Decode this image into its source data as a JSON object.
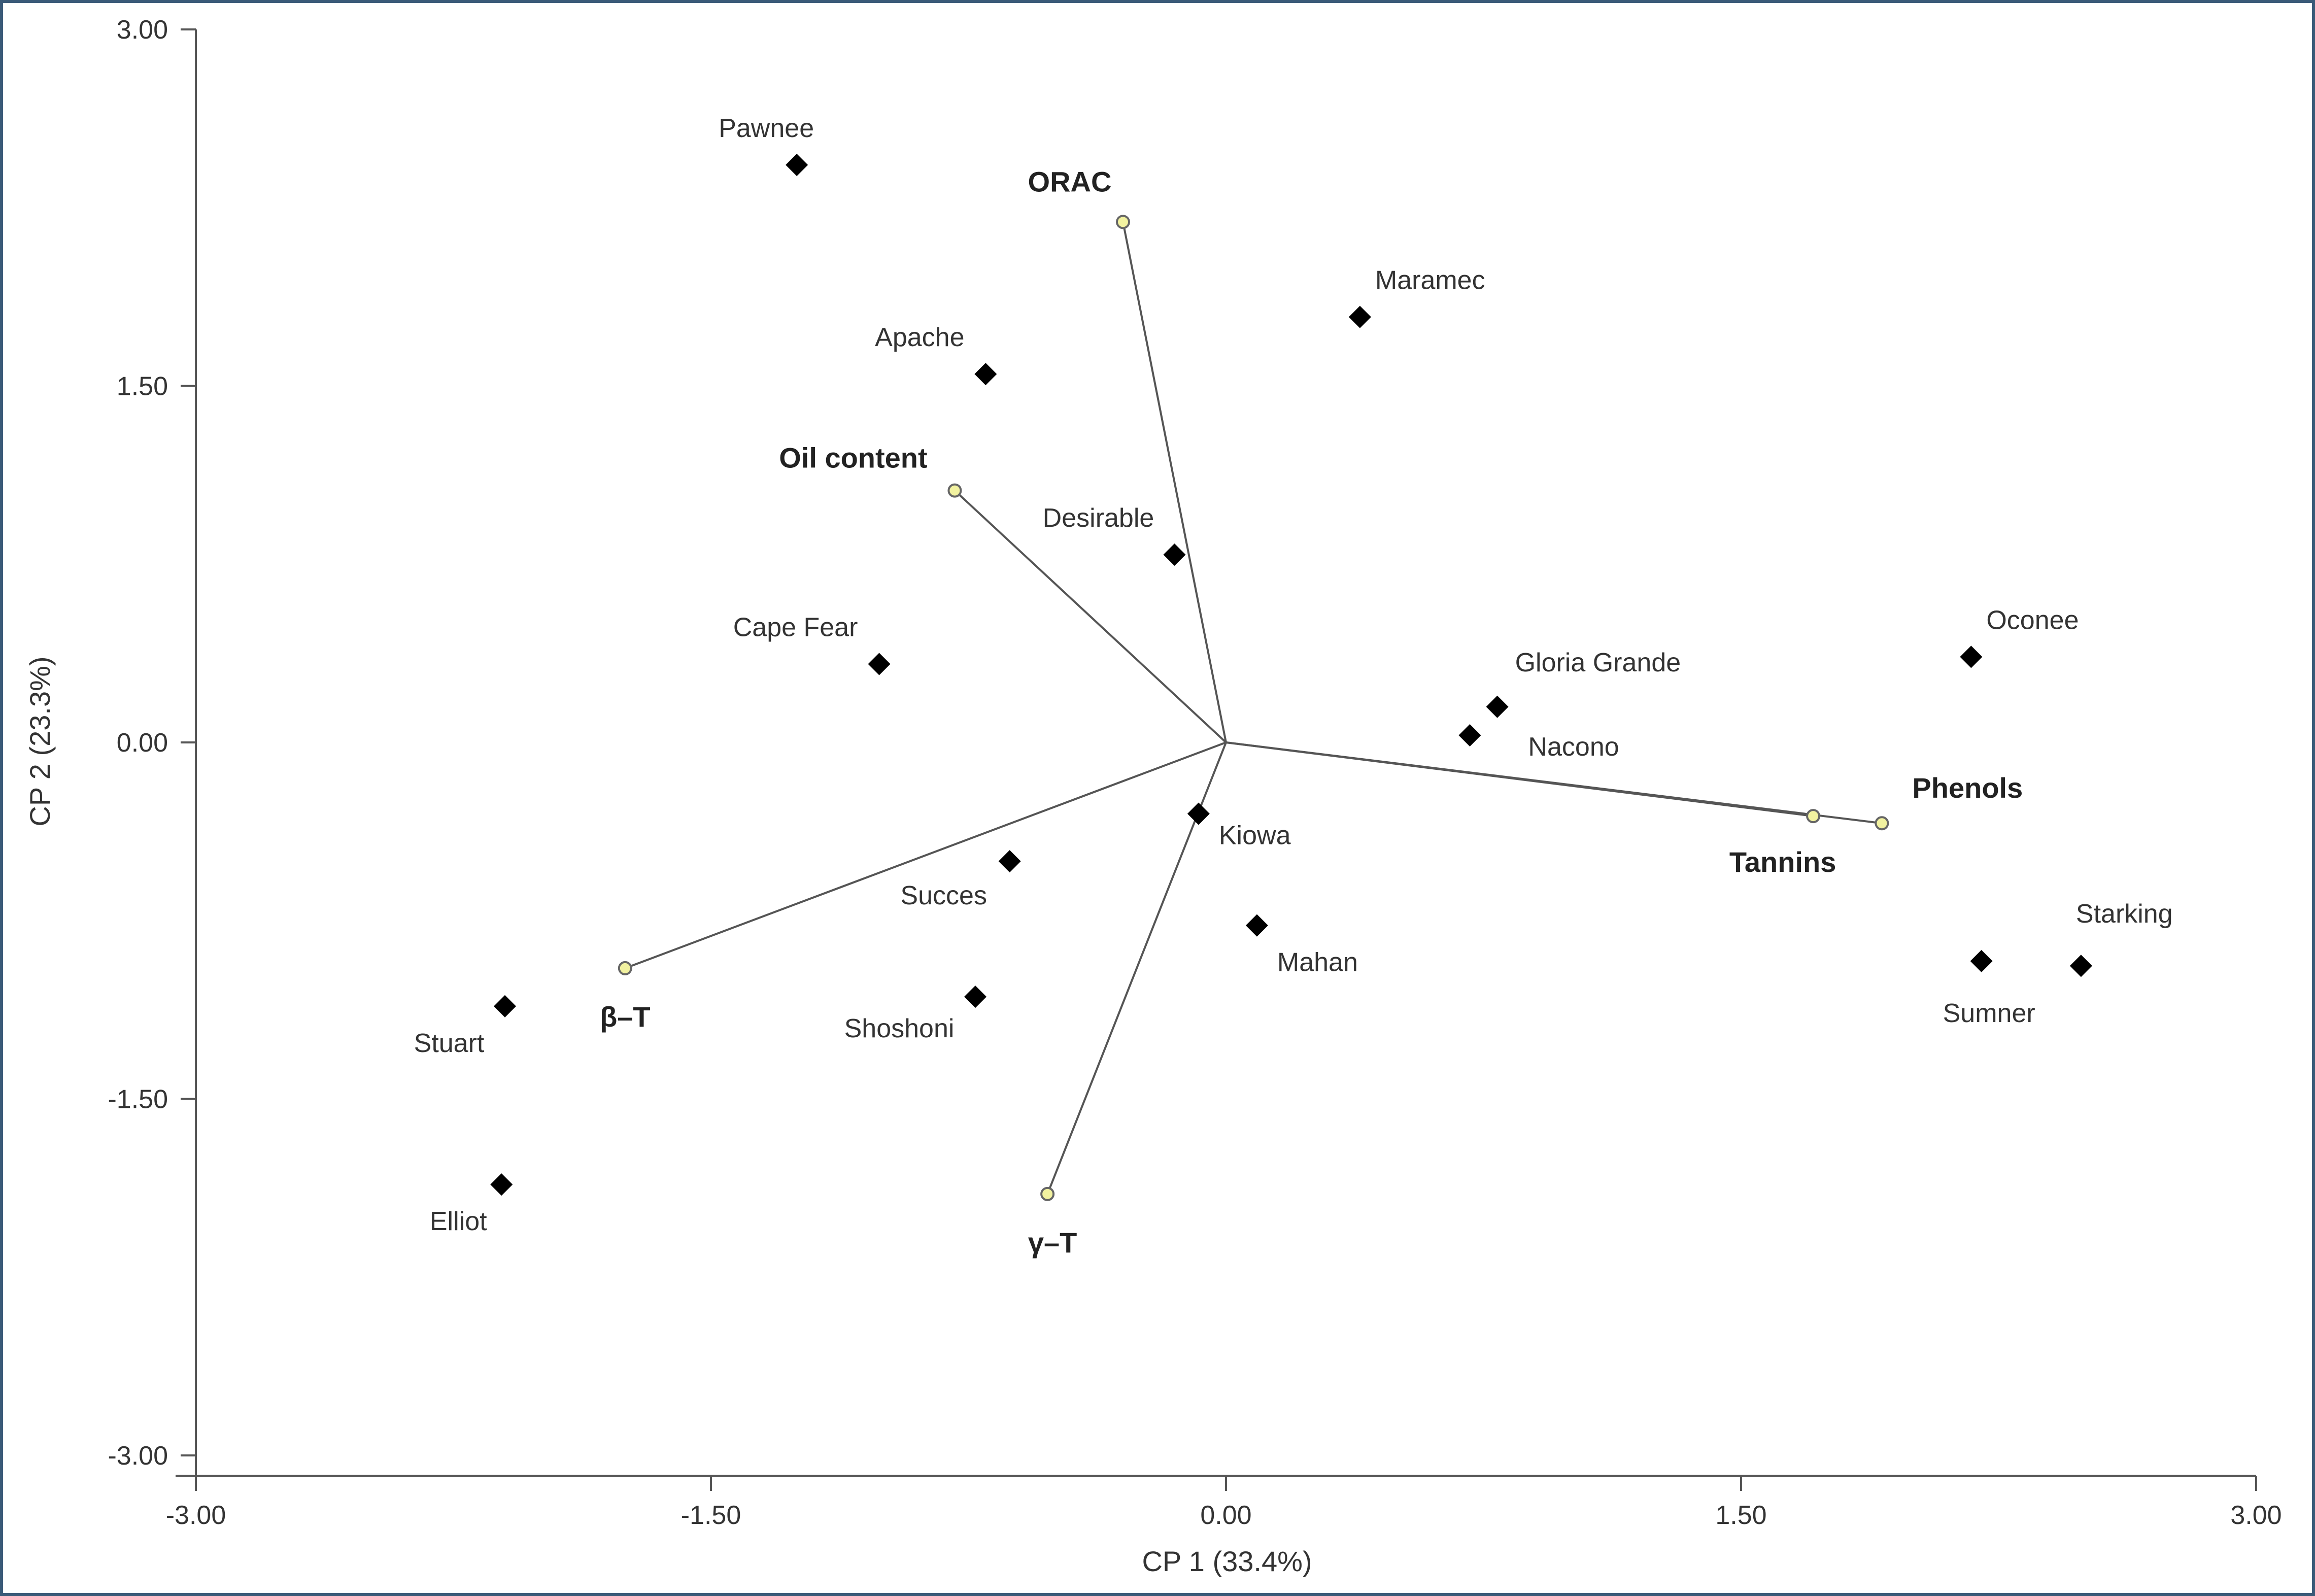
{
  "chart_data": {
    "type": "scatter",
    "title": "",
    "xlabel": "CP 1 (33.4%)",
    "ylabel": "CP 2 (23.3%)",
    "xlim": [
      -3.0,
      3.0
    ],
    "ylim": [
      -3.0,
      3.0
    ],
    "x_ticks": [
      "-3.00",
      "-1.50",
      "0.00",
      "1.50",
      "3.00"
    ],
    "y_ticks": [
      "3.00",
      "1.50",
      "0.00",
      "-1.50",
      "-3.00"
    ],
    "grid": false,
    "legend": "none",
    "colors": {
      "points": "#000000",
      "vector_lines": "#555555",
      "vector_ends": "#f2f2a0"
    },
    "series": [
      {
        "kind": "cultivars",
        "points": [
          {
            "label": "Pawnee",
            "x": -1.25,
            "y": 2.43
          },
          {
            "label": "Maramec",
            "x": 0.39,
            "y": 1.79
          },
          {
            "label": "Apache",
            "x": -0.7,
            "y": 1.55
          },
          {
            "label": "Desirable",
            "x": -0.15,
            "y": 0.79
          },
          {
            "label": "Cape Fear",
            "x": -1.01,
            "y": 0.33
          },
          {
            "label": "Oconee",
            "x": 2.17,
            "y": 0.36
          },
          {
            "label": "Gloria Grande",
            "x": 0.79,
            "y": 0.15
          },
          {
            "label": "Nacono",
            "x": 0.71,
            "y": 0.03
          },
          {
            "label": "Kiowa",
            "x": -0.08,
            "y": -0.3
          },
          {
            "label": "Succes",
            "x": -0.63,
            "y": -0.5
          },
          {
            "label": "Mahan",
            "x": 0.09,
            "y": -0.77
          },
          {
            "label": "Shoshoni",
            "x": -0.73,
            "y": -1.07
          },
          {
            "label": "Stuart",
            "x": -2.1,
            "y": -1.11
          },
          {
            "label": "Elliot",
            "x": -2.11,
            "y": -1.86
          },
          {
            "label": "Sumner",
            "x": 2.2,
            "y": -0.92
          },
          {
            "label": "Starking",
            "x": 2.49,
            "y": -0.94
          }
        ]
      },
      {
        "kind": "variable_vectors",
        "origin": [
          0.0,
          0.0
        ],
        "points": [
          {
            "label": "ORAC",
            "x": -0.3,
            "y": 2.19
          },
          {
            "label": "Oil content",
            "x": -0.79,
            "y": 1.06
          },
          {
            "label": "Phenols",
            "x": 1.91,
            "y": -0.34
          },
          {
            "label": "Tannins",
            "x": 1.71,
            "y": -0.31
          },
          {
            "label": "β–T",
            "x": -1.75,
            "y": -0.95
          },
          {
            "label": "γ–T",
            "x": -0.52,
            "y": -1.9
          }
        ]
      }
    ]
  }
}
